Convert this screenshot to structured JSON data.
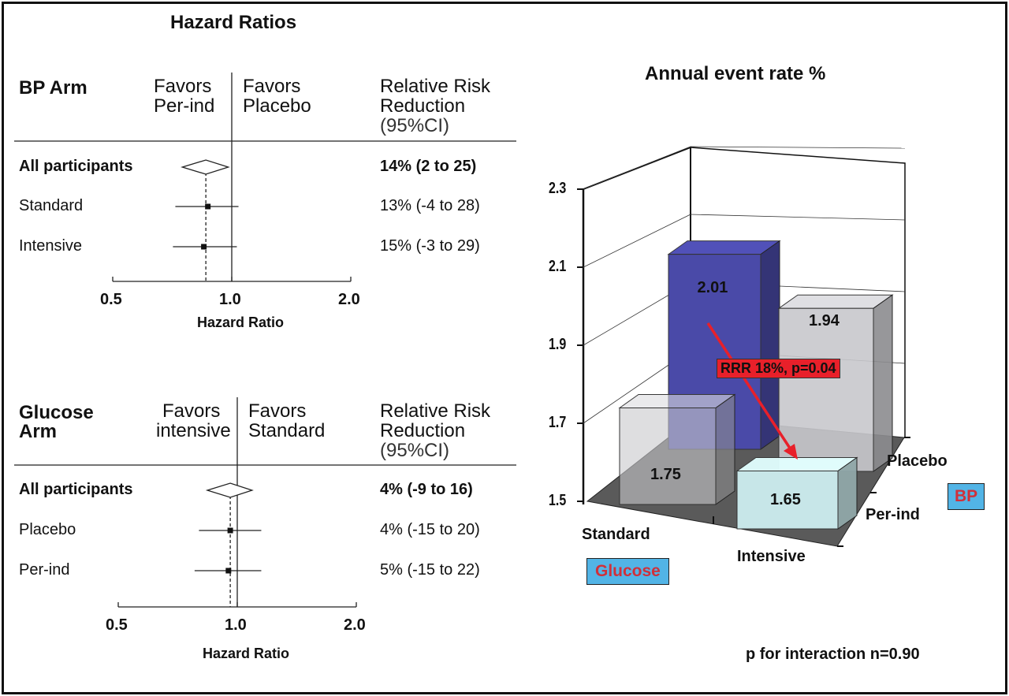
{
  "chart_data": [
    {
      "type": "forest",
      "title": "Hazard Ratios",
      "panel": "BP Arm",
      "favors_left": "Favors Per-ind",
      "favors_right": "Favors Placebo",
      "rrr_header": "Relative Risk Reduction (95%CI)",
      "xlabel": "Hazard Ratio",
      "xscale": "log",
      "xticks": [
        "0.5",
        "1.0",
        "2.0"
      ],
      "rows": [
        {
          "label": "All participants",
          "hr": 0.86,
          "lo": 0.75,
          "hi": 0.98,
          "marker": "diamond",
          "rrr": "14% (2 to 25)",
          "bold": true
        },
        {
          "label": "Standard",
          "hr": 0.87,
          "lo": 0.72,
          "hi": 1.04,
          "marker": "square",
          "rrr": "13% (-4 to 28)",
          "bold": false
        },
        {
          "label": "Intensive",
          "hr": 0.85,
          "lo": 0.71,
          "hi": 1.03,
          "marker": "square",
          "rrr": "15% (-3 to 29)",
          "bold": false
        }
      ]
    },
    {
      "type": "forest",
      "panel": "Glucose Arm",
      "favors_left": "Favors intensive",
      "favors_right": "Favors Standard",
      "rrr_header": "Relative Risk Reduction (95%CI)",
      "xlabel": "Hazard Ratio",
      "xscale": "log",
      "xticks": [
        "0.5",
        "1.0",
        "2.0"
      ],
      "rows": [
        {
          "label": "All participants",
          "hr": 0.96,
          "lo": 0.84,
          "hi": 1.09,
          "marker": "diamond",
          "rrr": "4% (-9 to 16)",
          "bold": true
        },
        {
          "label": "Placebo",
          "hr": 0.96,
          "lo": 0.8,
          "hi": 1.15,
          "marker": "square",
          "rrr": "4% (-15 to 20)",
          "bold": false
        },
        {
          "label": "Per-ind",
          "hr": 0.95,
          "lo": 0.78,
          "hi": 1.15,
          "marker": "square",
          "rrr": "5% (-15 to 22)",
          "bold": false
        }
      ]
    },
    {
      "type": "bar3d",
      "title": "Annual event rate %",
      "yticks": [
        "1.5",
        "1.7",
        "1.9",
        "2.1",
        "2.3"
      ],
      "ylim": [
        1.5,
        2.3
      ],
      "x_categories": [
        "Standard",
        "Intensive"
      ],
      "x_group_label": "Glucose",
      "depth_categories": [
        "Per-ind",
        "Placebo"
      ],
      "depth_group_label": "BP",
      "bars": [
        {
          "glucose": "Standard",
          "bp": "Placebo",
          "value": 2.01,
          "label": "2.01",
          "color": "#4a4aa8"
        },
        {
          "glucose": "Intensive",
          "bp": "Placebo",
          "value": 1.94,
          "label": "1.94",
          "color": "#c8c8cc"
        },
        {
          "glucose": "Standard",
          "bp": "Per-ind",
          "value": 1.75,
          "label": "1.75",
          "color": "#c8c8cc"
        },
        {
          "glucose": "Intensive",
          "bp": "Per-ind",
          "value": 1.65,
          "label": "1.65",
          "color": "#cdeef0"
        }
      ],
      "annotation": "RRR 18%, p=0.04",
      "annotation_color": "#e8202a",
      "footnote": "p for interaction n=0.90",
      "group_label_bg": "#52b4e6",
      "group_label_color": "#d0303a"
    }
  ]
}
